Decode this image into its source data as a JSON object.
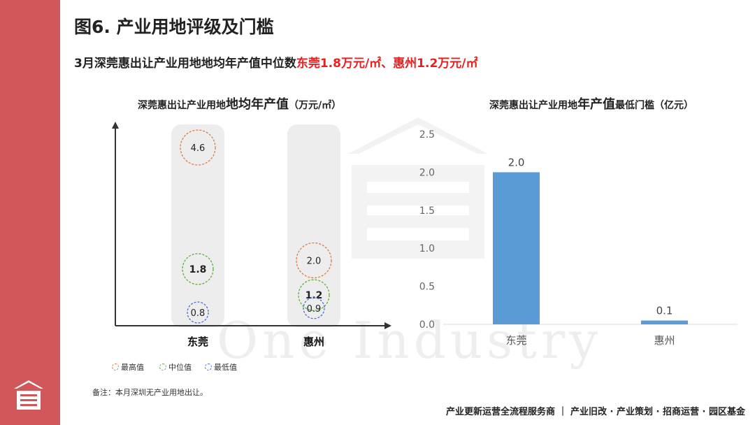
{
  "slide": {
    "title": "图6. 产业用地评级及门槛",
    "subtitle_prefix": "3月深莞惠出让产业用地地均年产值中位数",
    "subtitle_highlight": "东莞1.8万元/㎡、惠州1.2万元/㎡",
    "note": "备注：本月深圳无产业用地出让。",
    "footer": "产业更新运营全流程服务商 ｜ 产业旧改 · 产业策划 · 招商运营 · 园区基金",
    "watermark": "One Industry",
    "colors": {
      "sidebar": "#d0575a",
      "highlight": "#e81f1f",
      "bar": "#5b9bd5",
      "max": "#e07a3a",
      "median": "#5fae3f",
      "min": "#4a6fd8"
    }
  },
  "chart_data": [
    {
      "type": "scatter",
      "title_prefix": "深莞惠出让产业用地",
      "title_emph": "地均年产值",
      "title_suffix": "（万元/㎡）",
      "categories": [
        "东莞",
        "惠州"
      ],
      "series": [
        {
          "name": "最高值",
          "values": [
            4.6,
            2.0
          ],
          "labels": [
            "4.6",
            "2.0"
          ]
        },
        {
          "name": "中位值",
          "values": [
            1.8,
            1.2
          ],
          "labels": [
            "1.8",
            "1.2"
          ]
        },
        {
          "name": "最低值",
          "values": [
            0.8,
            0.9
          ],
          "labels": [
            "0.8",
            "0.9"
          ]
        }
      ],
      "ylim": [
        0,
        5.0
      ],
      "legend_position": "bottom"
    },
    {
      "type": "bar",
      "title_prefix": "深莞惠出让产业用地",
      "title_emph": "年产值",
      "title_suffix": "最低门槛（亿元）",
      "categories": [
        "东莞",
        "惠州"
      ],
      "values": [
        2.0,
        0.05
      ],
      "data_labels": [
        "2.0",
        "0.1"
      ],
      "yticks": [
        "0.0",
        "0.5",
        "1.0",
        "1.5",
        "2.0",
        "2.5"
      ],
      "ylim": [
        0,
        2.5
      ]
    }
  ]
}
